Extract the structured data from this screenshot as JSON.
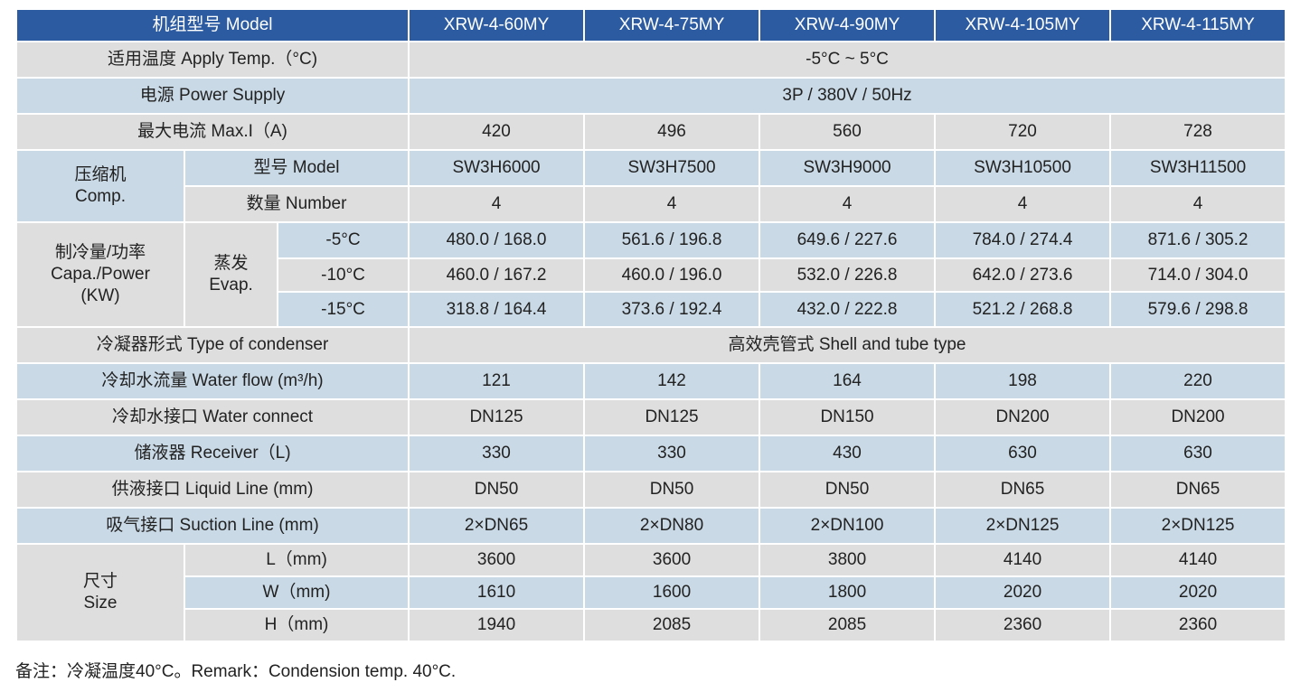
{
  "models": [
    "XRW-4-60MY",
    "XRW-4-75MY",
    "XRW-4-90MY",
    "XRW-4-105MY",
    "XRW-4-115MY"
  ],
  "labels": {
    "model": "机组型号 Model",
    "apply_temp": "适用温度 Apply Temp.（°C)",
    "power_supply": "电源 Power Supply",
    "max_current": "最大电流 Max.I（A)",
    "comp_cn": "压缩机",
    "comp_en": "Comp.",
    "comp_model": "型号 Model",
    "comp_number": "数量 Number",
    "capa_cn": "制冷量/功率",
    "capa_en": "Capa./Power",
    "capa_unit": "(KW)",
    "evap_cn": "蒸发",
    "evap_en": "Evap.",
    "evap_temps": [
      "-5°C",
      "-10°C",
      "-15°C"
    ],
    "condenser_type": "冷凝器形式 Type of condenser",
    "water_flow": "冷却水流量 Water flow (m³/h)",
    "water_connect": "冷却水接口 Water connect",
    "receiver": "储液器 Receiver（L)",
    "liquid_line": "供液接口 Liquid Line (mm)",
    "suction_line": "吸气接口 Suction Line (mm)",
    "size_cn": "尺寸",
    "size_en": "Size",
    "size_l": "L（mm)",
    "size_w": "W（mm)",
    "size_h": "H（mm)"
  },
  "values": {
    "apply_temp": "-5°C ~ 5°C",
    "power_supply": "3P / 380V / 50Hz",
    "max_current": [
      "420",
      "496",
      "560",
      "720",
      "728"
    ],
    "comp_model": [
      "SW3H6000",
      "SW3H7500",
      "SW3H9000",
      "SW3H10500",
      "SW3H11500"
    ],
    "comp_number": [
      "4",
      "4",
      "4",
      "4",
      "4"
    ],
    "capa": [
      [
        "480.0 / 168.0",
        "561.6 / 196.8",
        "649.6 / 227.6",
        "784.0 / 274.4",
        "871.6 / 305.2"
      ],
      [
        "460.0 / 167.2",
        "460.0 / 196.0",
        "532.0 / 226.8",
        "642.0 / 273.6",
        "714.0 / 304.0"
      ],
      [
        "318.8 / 164.4",
        "373.6 / 192.4",
        "432.0 / 222.8",
        "521.2 / 268.8",
        "579.6 / 298.8"
      ]
    ],
    "condenser_type": "高效壳管式 Shell and tube type",
    "water_flow": [
      "121",
      "142",
      "164",
      "198",
      "220"
    ],
    "water_connect": [
      "DN125",
      "DN125",
      "DN150",
      "DN200",
      "DN200"
    ],
    "receiver": [
      "330",
      "330",
      "430",
      "630",
      "630"
    ],
    "liquid_line": [
      "DN50",
      "DN50",
      "DN50",
      "DN65",
      "DN65"
    ],
    "suction_line": [
      "2×DN65",
      "2×DN80",
      "2×DN100",
      "2×DN125",
      "2×DN125"
    ],
    "size_l": [
      "3600",
      "3600",
      "3800",
      "4140",
      "4140"
    ],
    "size_w": [
      "1610",
      "1600",
      "1800",
      "2020",
      "2020"
    ],
    "size_h": [
      "1940",
      "2085",
      "2085",
      "2360",
      "2360"
    ]
  },
  "remark": "备注：冷凝温度40°C。Remark：Condension temp. 40°C."
}
